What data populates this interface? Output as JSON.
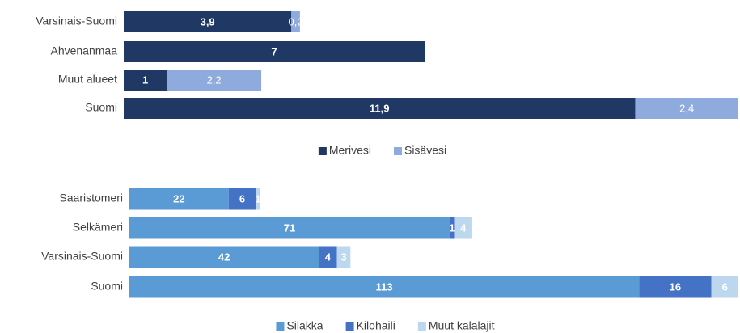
{
  "chart_data": [
    {
      "type": "bar",
      "orientation": "horizontal",
      "stacked": true,
      "categories": [
        "Varsinais-Suomi",
        "Ahvenanmaa",
        "Muut alueet",
        "Suomi"
      ],
      "series": [
        {
          "name": "Merivesi",
          "color": "#1f3864",
          "values": [
            3.9,
            7,
            1,
            11.9
          ],
          "value_labels": [
            "3,9",
            "7",
            "1",
            "11,9"
          ]
        },
        {
          "name": "Sisävesi",
          "color": "#8faadc",
          "values": [
            0.2,
            null,
            2.2,
            2.4
          ],
          "value_labels": [
            "0,2",
            null,
            "2,2",
            "2,4"
          ]
        }
      ],
      "xlim": [
        0,
        14.3
      ],
      "legend": "bottom"
    },
    {
      "type": "bar",
      "orientation": "horizontal",
      "stacked": true,
      "categories": [
        "Saaristomeri",
        "Selkämeri",
        "Varsinais-Suomi",
        "Suomi"
      ],
      "series": [
        {
          "name": "Silakka",
          "color": "#5b9bd5",
          "values": [
            22,
            71,
            42,
            113
          ]
        },
        {
          "name": "Kilohaili",
          "color": "#4472c4",
          "values": [
            6,
            1,
            4,
            16
          ]
        },
        {
          "name": "Muut kalalajit",
          "color": "#bdd7ee",
          "values": [
            1,
            4,
            3,
            6
          ]
        }
      ],
      "xlim": [
        0,
        135
      ],
      "legend": "bottom"
    }
  ]
}
